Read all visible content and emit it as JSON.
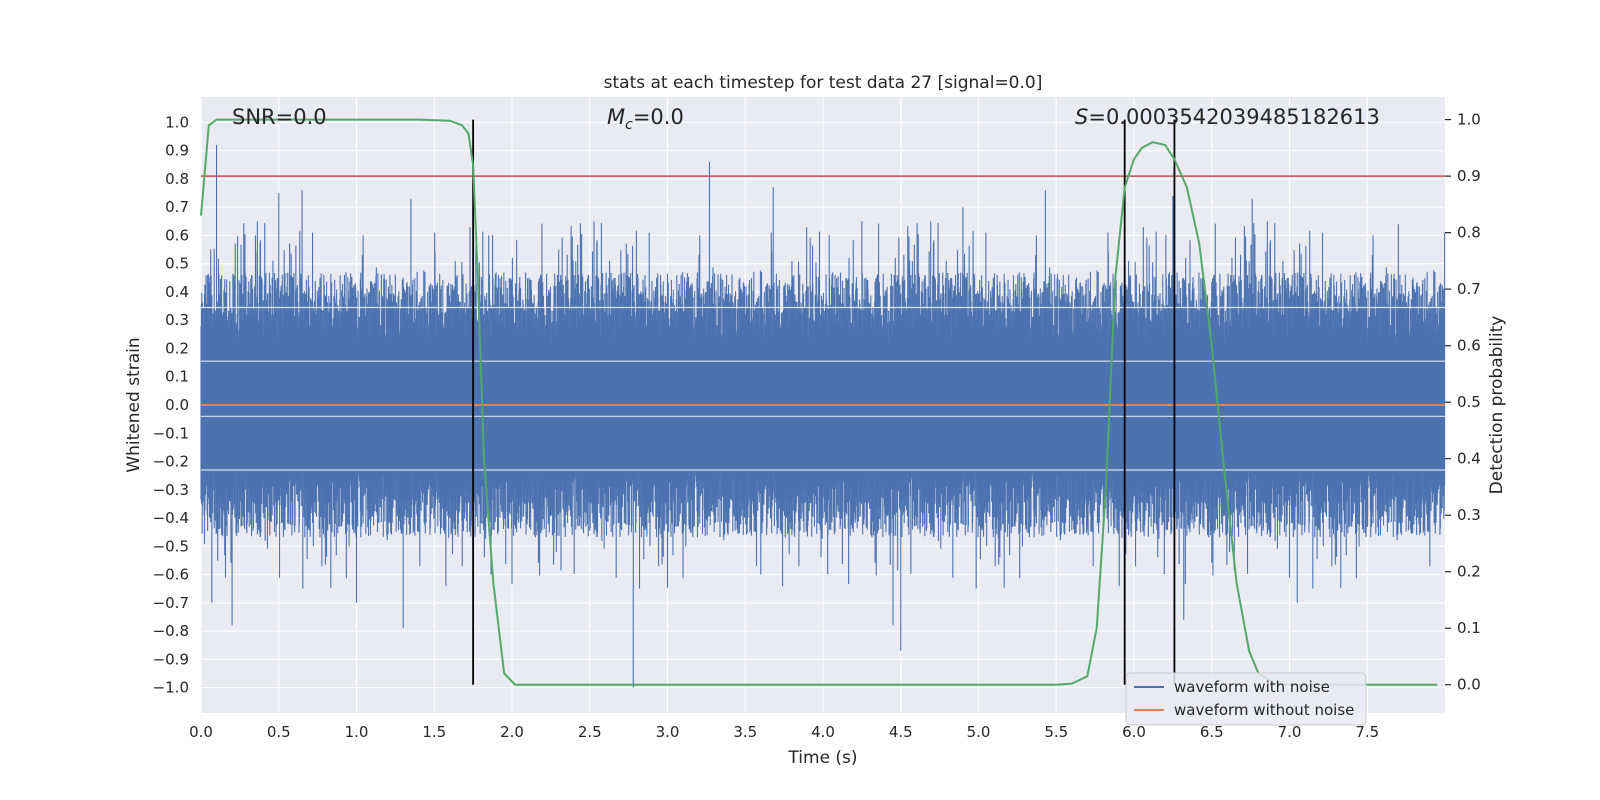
{
  "chart_data": {
    "type": "line",
    "title": "stats at each timestep for test data 27 [signal=0.0]",
    "xlabel": "Time (s)",
    "ylabel": "Whitened strain",
    "y2label": "Detection probability",
    "xlim": [
      0.0,
      8.0
    ],
    "ylim": [
      -1.09,
      1.09
    ],
    "y2lim": [
      -0.05,
      1.04
    ],
    "xticks": [
      0.0,
      0.5,
      1.0,
      1.5,
      2.0,
      2.5,
      3.0,
      3.5,
      4.0,
      4.5,
      5.0,
      5.5,
      6.0,
      6.5,
      7.0,
      7.5
    ],
    "xtick_labels": [
      "0.0",
      "0.5",
      "1.0",
      "1.5",
      "2.0",
      "2.5",
      "3.0",
      "3.5",
      "4.0",
      "4.5",
      "5.0",
      "5.5",
      "6.0",
      "6.5",
      "7.0",
      "7.5"
    ],
    "yticks": [
      1.0,
      0.9,
      0.8,
      0.7,
      0.6,
      0.5,
      0.4,
      0.3,
      0.2,
      0.1,
      0.0,
      -0.1,
      -0.2,
      -0.3,
      -0.4,
      -0.5,
      -0.6,
      -0.7,
      -0.8,
      -0.9,
      -1.0
    ],
    "ytick_labels": [
      "1.0",
      "0.9",
      "0.8",
      "0.7",
      "0.6",
      "0.5",
      "0.4",
      "0.3",
      "0.2",
      "0.1",
      "0.0",
      "−0.1",
      "−0.2",
      "−0.3",
      "−0.4",
      "−0.5",
      "−0.6",
      "−0.7",
      "−0.8",
      "−0.9",
      "−1.0"
    ],
    "y2ticks": [
      1.0,
      0.9,
      0.8,
      0.7,
      0.6,
      0.5,
      0.4,
      0.3,
      0.2,
      0.1,
      0.0
    ],
    "y2tick_labels": [
      "1.0",
      "0.9",
      "0.8",
      "0.7",
      "0.6",
      "0.5",
      "0.4",
      "0.3",
      "0.2",
      "0.1",
      "0.0"
    ],
    "grid": true,
    "legend_position": "bottom-right",
    "annotations": {
      "snr": "SNR=0.0",
      "mc_symbol": "M",
      "mc_sub": "c",
      "mc_value": "=0.0",
      "s_symbol": "S",
      "s_value": "=0.0003542039485182613"
    },
    "threshold": 0.9,
    "vertical_lines": [
      1.75,
      5.94,
      6.26
    ],
    "series": [
      {
        "name": "waveform with noise",
        "color": "#4c72b0",
        "description_envelope": {
          "typical_amplitude": 0.45,
          "peak_max": 0.92,
          "peak_min": -1.0
        },
        "spikes": [
          {
            "x": 0.1,
            "y": 0.92
          },
          {
            "x": 0.35,
            "y": 0.6
          },
          {
            "x": 0.5,
            "y": 0.75
          },
          {
            "x": 0.65,
            "y": 0.76
          },
          {
            "x": 1.0,
            "y": 0.71
          },
          {
            "x": 1.35,
            "y": 0.73
          },
          {
            "x": 1.85,
            "y": 0.6
          },
          {
            "x": 2.3,
            "y": 0.55
          },
          {
            "x": 3.27,
            "y": 0.86
          },
          {
            "x": 3.68,
            "y": 0.77
          },
          {
            "x": 4.25,
            "y": 0.65
          },
          {
            "x": 4.9,
            "y": 0.7
          },
          {
            "x": 5.43,
            "y": 0.76
          },
          {
            "x": 6.25,
            "y": 0.74
          },
          {
            "x": 6.76,
            "y": 0.73
          },
          {
            "x": 7.7,
            "y": 0.64
          },
          {
            "x": 0.07,
            "y": -0.7
          },
          {
            "x": 0.2,
            "y": -0.78
          },
          {
            "x": 1.3,
            "y": -0.79
          },
          {
            "x": 2.78,
            "y": -1.0
          },
          {
            "x": 4.45,
            "y": -0.78
          },
          {
            "x": 4.5,
            "y": -0.87
          },
          {
            "x": 6.32,
            "y": -0.76
          },
          {
            "x": 7.05,
            "y": -0.7
          },
          {
            "x": 1.0,
            "y": -0.7
          },
          {
            "x": 3.6,
            "y": -0.6
          }
        ]
      },
      {
        "name": "waveform without noise",
        "color": "#dd8452",
        "x": [
          0.0,
          8.0
        ],
        "y": [
          0.0,
          0.0
        ]
      },
      {
        "name": "detection probability",
        "color": "#55a868",
        "axis": "right",
        "x": [
          0.0,
          0.05,
          0.1,
          0.15,
          0.3,
          0.6,
          1.0,
          1.4,
          1.6,
          1.68,
          1.72,
          1.75,
          1.78,
          1.82,
          1.88,
          1.95,
          2.02,
          2.2,
          3.0,
          4.0,
          5.0,
          5.5,
          5.6,
          5.7,
          5.76,
          5.82,
          5.88,
          5.94,
          6.0,
          6.05,
          6.12,
          6.2,
          6.26,
          6.34,
          6.42,
          6.5,
          6.58,
          6.66,
          6.74,
          6.8,
          6.9,
          7.0,
          7.5,
          7.95
        ],
        "y": [
          0.83,
          0.99,
          1.0,
          1.0,
          1.0,
          1.0,
          1.0,
          1.0,
          0.998,
          0.99,
          0.975,
          0.92,
          0.72,
          0.4,
          0.18,
          0.02,
          0.0,
          0.0,
          0.0,
          0.0,
          0.0,
          0.0,
          0.002,
          0.015,
          0.1,
          0.35,
          0.72,
          0.88,
          0.93,
          0.95,
          0.96,
          0.955,
          0.93,
          0.88,
          0.78,
          0.6,
          0.38,
          0.18,
          0.06,
          0.02,
          0.003,
          0.0,
          0.0,
          0.0
        ]
      }
    ]
  }
}
